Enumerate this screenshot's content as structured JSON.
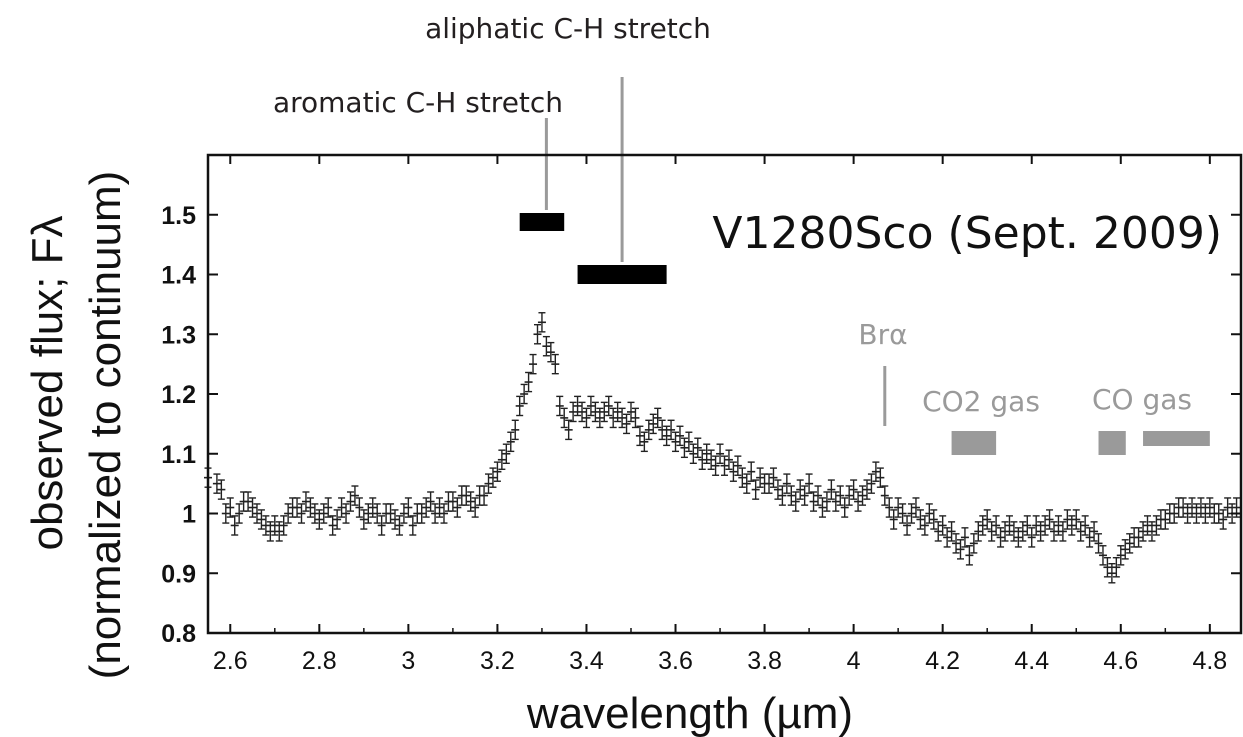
{
  "chart_data": {
    "type": "scatter",
    "title": "V1280Sco (Sept. 2009)",
    "xlabel": "wavelength (µm)",
    "ylabel_line1": "observed flux; Fλ",
    "ylabel_line2": "(normalized to continuum)",
    "xlim": [
      2.55,
      4.87
    ],
    "ylim": [
      0.8,
      1.6
    ],
    "x_ticks": [
      2.6,
      2.8,
      3.0,
      3.2,
      3.4,
      3.6,
      3.8,
      4.0,
      4.2,
      4.4,
      4.6,
      4.8
    ],
    "x_tick_labels": [
      "2.6",
      "2.8",
      "3",
      "3.2",
      "3.4",
      "3.6",
      "3.8",
      "4",
      "4.2",
      "4.4",
      "4.6",
      "4.8"
    ],
    "y_ticks": [
      0.8,
      0.9,
      1.0,
      1.1,
      1.2,
      1.3,
      1.4,
      1.5
    ],
    "y_tick_labels": [
      "0.8",
      "0.9",
      "1",
      "1.1",
      "1.2",
      "1.3",
      "1.4",
      "1.5"
    ],
    "grid": false,
    "series": [
      {
        "error": 0.016,
        "points": [
          [
            2.55,
            1.06
          ],
          [
            2.57,
            1.05
          ],
          [
            2.58,
            1.04
          ],
          [
            2.59,
            1.0
          ],
          [
            2.6,
            1.01
          ],
          [
            2.61,
            0.98
          ],
          [
            2.62,
            1.0
          ],
          [
            2.63,
            1.02
          ],
          [
            2.64,
            1.02
          ],
          [
            2.65,
            1.01
          ],
          [
            2.66,
            1.0
          ],
          [
            2.67,
            0.99
          ],
          [
            2.68,
            0.98
          ],
          [
            2.69,
            0.97
          ],
          [
            2.7,
            0.98
          ],
          [
            2.71,
            0.97
          ],
          [
            2.72,
            0.98
          ],
          [
            2.73,
            1.0
          ],
          [
            2.74,
            1.01
          ],
          [
            2.75,
            1.01
          ],
          [
            2.76,
            1.0
          ],
          [
            2.77,
            1.02
          ],
          [
            2.78,
            1.01
          ],
          [
            2.79,
            1.0
          ],
          [
            2.8,
            0.99
          ],
          [
            2.81,
            1.0
          ],
          [
            2.82,
            1.01
          ],
          [
            2.83,
            0.98
          ],
          [
            2.84,
            0.99
          ],
          [
            2.85,
            1.01
          ],
          [
            2.86,
            1.0
          ],
          [
            2.87,
            1.02
          ],
          [
            2.88,
            1.03
          ],
          [
            2.89,
            1.01
          ],
          [
            2.9,
            0.99
          ],
          [
            2.91,
            1.0
          ],
          [
            2.92,
            1.01
          ],
          [
            2.93,
            1.0
          ],
          [
            2.94,
            0.98
          ],
          [
            2.95,
            1.0
          ],
          [
            2.96,
            1.0
          ],
          [
            2.97,
            0.99
          ],
          [
            2.98,
            0.98
          ],
          [
            2.99,
            1.0
          ],
          [
            3.0,
            1.01
          ],
          [
            3.01,
            0.98
          ],
          [
            3.02,
            1.0
          ],
          [
            3.03,
            1.0
          ],
          [
            3.04,
            1.01
          ],
          [
            3.05,
            1.02
          ],
          [
            3.06,
            1.0
          ],
          [
            3.07,
            1.01
          ],
          [
            3.08,
            1.0
          ],
          [
            3.09,
            1.02
          ],
          [
            3.1,
            1.02
          ],
          [
            3.11,
            1.01
          ],
          [
            3.12,
            1.03
          ],
          [
            3.13,
            1.03
          ],
          [
            3.14,
            1.02
          ],
          [
            3.15,
            1.01
          ],
          [
            3.16,
            1.03
          ],
          [
            3.17,
            1.03
          ],
          [
            3.18,
            1.05
          ],
          [
            3.19,
            1.06
          ],
          [
            3.2,
            1.07
          ],
          [
            3.21,
            1.09
          ],
          [
            3.22,
            1.1
          ],
          [
            3.23,
            1.12
          ],
          [
            3.24,
            1.14
          ],
          [
            3.25,
            1.18
          ],
          [
            3.26,
            1.2
          ],
          [
            3.27,
            1.22
          ],
          [
            3.28,
            1.25
          ],
          [
            3.29,
            1.3
          ],
          [
            3.3,
            1.32
          ],
          [
            3.31,
            1.28
          ],
          [
            3.32,
            1.27
          ],
          [
            3.33,
            1.25
          ],
          [
            3.34,
            1.18
          ],
          [
            3.35,
            1.16
          ],
          [
            3.36,
            1.14
          ],
          [
            3.37,
            1.17
          ],
          [
            3.38,
            1.18
          ],
          [
            3.39,
            1.17
          ],
          [
            3.4,
            1.16
          ],
          [
            3.41,
            1.18
          ],
          [
            3.42,
            1.17
          ],
          [
            3.43,
            1.16
          ],
          [
            3.44,
            1.17
          ],
          [
            3.45,
            1.18
          ],
          [
            3.46,
            1.16
          ],
          [
            3.47,
            1.17
          ],
          [
            3.48,
            1.16
          ],
          [
            3.49,
            1.15
          ],
          [
            3.5,
            1.17
          ],
          [
            3.51,
            1.16
          ],
          [
            3.52,
            1.13
          ],
          [
            3.53,
            1.12
          ],
          [
            3.54,
            1.14
          ],
          [
            3.55,
            1.15
          ],
          [
            3.56,
            1.16
          ],
          [
            3.57,
            1.14
          ],
          [
            3.58,
            1.13
          ],
          [
            3.59,
            1.14
          ],
          [
            3.6,
            1.12
          ],
          [
            3.61,
            1.13
          ],
          [
            3.62,
            1.11
          ],
          [
            3.63,
            1.12
          ],
          [
            3.64,
            1.1
          ],
          [
            3.65,
            1.11
          ],
          [
            3.66,
            1.09
          ],
          [
            3.67,
            1.1
          ],
          [
            3.68,
            1.09
          ],
          [
            3.69,
            1.08
          ],
          [
            3.7,
            1.1
          ],
          [
            3.71,
            1.08
          ],
          [
            3.72,
            1.09
          ],
          [
            3.73,
            1.07
          ],
          [
            3.74,
            1.08
          ],
          [
            3.75,
            1.06
          ],
          [
            3.76,
            1.05
          ],
          [
            3.77,
            1.07
          ],
          [
            3.78,
            1.04
          ],
          [
            3.79,
            1.06
          ],
          [
            3.8,
            1.05
          ],
          [
            3.81,
            1.05
          ],
          [
            3.82,
            1.06
          ],
          [
            3.83,
            1.04
          ],
          [
            3.84,
            1.03
          ],
          [
            3.85,
            1.05
          ],
          [
            3.86,
            1.03
          ],
          [
            3.87,
            1.02
          ],
          [
            3.88,
            1.04
          ],
          [
            3.89,
            1.03
          ],
          [
            3.9,
            1.05
          ],
          [
            3.91,
            1.02
          ],
          [
            3.92,
            1.03
          ],
          [
            3.93,
            1.01
          ],
          [
            3.94,
            1.02
          ],
          [
            3.95,
            1.04
          ],
          [
            3.96,
            1.02
          ],
          [
            3.97,
            1.03
          ],
          [
            3.98,
            1.01
          ],
          [
            3.99,
            1.03
          ],
          [
            4.0,
            1.04
          ],
          [
            4.01,
            1.02
          ],
          [
            4.02,
            1.03
          ],
          [
            4.03,
            1.04
          ],
          [
            4.04,
            1.05
          ],
          [
            4.05,
            1.07
          ],
          [
            4.06,
            1.06
          ],
          [
            4.07,
            1.03
          ],
          [
            4.08,
            1.01
          ],
          [
            4.09,
            0.99
          ],
          [
            4.1,
            1.01
          ],
          [
            4.11,
            1.0
          ],
          [
            4.12,
            0.98
          ],
          [
            4.13,
            1.0
          ],
          [
            4.14,
            1.01
          ],
          [
            4.15,
            0.99
          ],
          [
            4.16,
            0.98
          ],
          [
            4.17,
            1.0
          ],
          [
            4.18,
            0.99
          ],
          [
            4.19,
            0.97
          ],
          [
            4.2,
            0.98
          ],
          [
            4.21,
            0.96
          ],
          [
            4.22,
            0.97
          ],
          [
            4.23,
            0.95
          ],
          [
            4.24,
            0.94
          ],
          [
            4.25,
            0.96
          ],
          [
            4.26,
            0.93
          ],
          [
            4.27,
            0.95
          ],
          [
            4.28,
            0.97
          ],
          [
            4.29,
            0.98
          ],
          [
            4.3,
            0.99
          ],
          [
            4.31,
            0.97
          ],
          [
            4.32,
            0.98
          ],
          [
            4.33,
            0.96
          ],
          [
            4.34,
            0.97
          ],
          [
            4.35,
            0.98
          ],
          [
            4.36,
            0.97
          ],
          [
            4.37,
            0.96
          ],
          [
            4.38,
            0.97
          ],
          [
            4.39,
            0.98
          ],
          [
            4.4,
            0.96
          ],
          [
            4.41,
            0.98
          ],
          [
            4.42,
            0.97
          ],
          [
            4.43,
            0.98
          ],
          [
            4.44,
            0.99
          ],
          [
            4.45,
            0.97
          ],
          [
            4.46,
            0.98
          ],
          [
            4.47,
            0.97
          ],
          [
            4.48,
            0.99
          ],
          [
            4.49,
            0.98
          ],
          [
            4.5,
            0.99
          ],
          [
            4.51,
            0.97
          ],
          [
            4.52,
            0.98
          ],
          [
            4.53,
            0.96
          ],
          [
            4.54,
            0.97
          ],
          [
            4.55,
            0.95
          ],
          [
            4.56,
            0.93
          ],
          [
            4.57,
            0.91
          ],
          [
            4.58,
            0.9
          ],
          [
            4.59,
            0.91
          ],
          [
            4.6,
            0.93
          ],
          [
            4.61,
            0.94
          ],
          [
            4.62,
            0.95
          ],
          [
            4.63,
            0.96
          ],
          [
            4.64,
            0.96
          ],
          [
            4.65,
            0.97
          ],
          [
            4.66,
            0.98
          ],
          [
            4.67,
            0.97
          ],
          [
            4.68,
            0.98
          ],
          [
            4.69,
            0.99
          ],
          [
            4.7,
            0.99
          ],
          [
            4.71,
            1.0
          ],
          [
            4.72,
            1.0
          ],
          [
            4.73,
            1.01
          ],
          [
            4.74,
            1.01
          ],
          [
            4.75,
            1.0
          ],
          [
            4.76,
            1.01
          ],
          [
            4.77,
            1.0
          ],
          [
            4.78,
            1.01
          ],
          [
            4.79,
            1.0
          ],
          [
            4.8,
            1.01
          ],
          [
            4.81,
            1.0
          ],
          [
            4.82,
            1.0
          ],
          [
            4.83,
            0.99
          ],
          [
            4.84,
            1.01
          ],
          [
            4.85,
            1.0
          ],
          [
            4.86,
            1.01
          ]
        ]
      }
    ],
    "annotations": [
      {
        "text": "aromatic C-H stretch",
        "band": [
          3.25,
          3.35
        ],
        "y": 1.49,
        "pointer_x": 3.31,
        "color": "#000000"
      },
      {
        "text": "aliphatic C-H stretch",
        "band": [
          3.38,
          3.58
        ],
        "y": 1.4,
        "pointer_x": 3.48,
        "color": "#000000"
      },
      {
        "text": "Brα",
        "pointer_x": 4.07,
        "color": "#9a9a9a"
      },
      {
        "text": "CO2 gas",
        "band": [
          4.22,
          4.32
        ],
        "y": 1.12,
        "color": "#9a9a9a"
      },
      {
        "text": "CO gas",
        "band": [
          4.55,
          4.8
        ],
        "y": 1.12,
        "color": "#9a9a9a"
      }
    ],
    "marker_color": "#222222",
    "band_color_gray": "#9a9a9a"
  }
}
